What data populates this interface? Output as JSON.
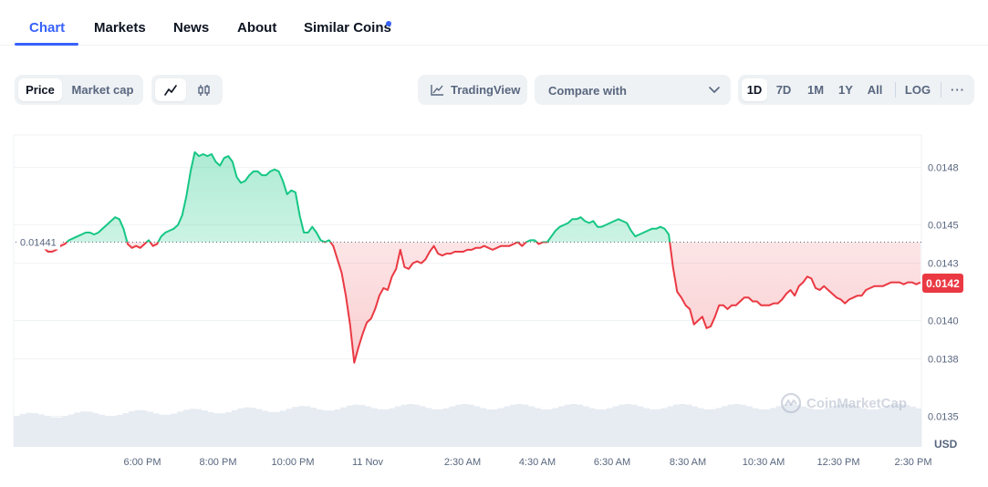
{
  "tabs": [
    {
      "label": "Chart",
      "active": true
    },
    {
      "label": "Markets",
      "active": false
    },
    {
      "label": "News",
      "active": false
    },
    {
      "label": "About",
      "active": false
    },
    {
      "label": "Similar Coins",
      "active": false,
      "has_dot": true
    }
  ],
  "toolbar": {
    "metric_options": [
      {
        "label": "Price",
        "active": true
      },
      {
        "label": "Market cap",
        "active": false
      }
    ],
    "chart_style_icons": [
      "line-chart-icon",
      "candlestick-icon"
    ],
    "tradingview_label": "TradingView",
    "compare_label": "Compare with",
    "range_options": [
      {
        "label": "1D",
        "active": true
      },
      {
        "label": "7D",
        "active": false
      },
      {
        "label": "1M",
        "active": false
      },
      {
        "label": "1Y",
        "active": false
      },
      {
        "label": "All",
        "active": false
      }
    ],
    "log_label": "LOG",
    "more_label": "···"
  },
  "colors": {
    "accent": "#3861fb",
    "up": "#16c784",
    "down": "#ea3943",
    "muted_text": "#58667e",
    "volume": "#e7ecf2"
  },
  "watermark": "CoinMarketCap",
  "chart_data": {
    "type": "area",
    "currency": "USD",
    "baseline": 0.01441,
    "baseline_label": "0.01441",
    "current_price": 0.0142,
    "current_price_label": "0.0142",
    "ylim": [
      0.01334,
      0.01497
    ],
    "y_ticks": [
      "0.0148",
      "0.0145",
      "0.0143",
      "0.0140",
      "0.0138",
      "0.0135"
    ],
    "x_ticks": [
      "6:00 PM",
      "8:00 PM",
      "10:00 PM",
      "11 Nov",
      "2:30 AM",
      "4:30 AM",
      "6:30 AM",
      "8:30 AM",
      "10:30 AM",
      "12:30 PM",
      "2:30 PM"
    ],
    "price_series": [
      0.01438,
      0.01436,
      0.01436,
      0.01437,
      0.01439,
      0.0144,
      0.01442,
      0.01443,
      0.01444,
      0.01445,
      0.01446,
      0.01446,
      0.01445,
      0.01446,
      0.01448,
      0.0145,
      0.01452,
      0.01454,
      0.01453,
      0.01448,
      0.0144,
      0.01438,
      0.01439,
      0.01438,
      0.0144,
      0.01442,
      0.01439,
      0.0144,
      0.01444,
      0.01446,
      0.01447,
      0.01448,
      0.0145,
      0.01455,
      0.01465,
      0.01478,
      0.01488,
      0.01486,
      0.01487,
      0.01486,
      0.01487,
      0.01483,
      0.01481,
      0.01485,
      0.01486,
      0.01483,
      0.01475,
      0.01472,
      0.01473,
      0.01476,
      0.01478,
      0.01478,
      0.01476,
      0.01476,
      0.01478,
      0.01479,
      0.01478,
      0.01473,
      0.01466,
      0.01468,
      0.01467,
      0.01455,
      0.01446,
      0.01446,
      0.01449,
      0.01446,
      0.01442,
      0.01441,
      0.01442,
      0.01439,
      0.01432,
      0.01425,
      0.01413,
      0.01398,
      0.01378,
      0.01386,
      0.01393,
      0.01399,
      0.01401,
      0.01406,
      0.01413,
      0.01417,
      0.01416,
      0.01423,
      0.01427,
      0.01437,
      0.01428,
      0.01427,
      0.0143,
      0.01431,
      0.0143,
      0.01432,
      0.01436,
      0.01439,
      0.01435,
      0.01434,
      0.01435,
      0.01435,
      0.01436,
      0.01436,
      0.01436,
      0.01437,
      0.01437,
      0.01438,
      0.01438,
      0.01439,
      0.01438,
      0.01437,
      0.01438,
      0.01439,
      0.01439,
      0.01439,
      0.0144,
      0.01441,
      0.01439,
      0.01441,
      0.01442,
      0.01442,
      0.0144,
      0.01441,
      0.01441,
      0.01444,
      0.01447,
      0.01449,
      0.0145,
      0.01451,
      0.01453,
      0.01453,
      0.01454,
      0.01452,
      0.01451,
      0.01452,
      0.01449,
      0.01449,
      0.0145,
      0.01451,
      0.01452,
      0.01453,
      0.01452,
      0.01451,
      0.01447,
      0.01444,
      0.01445,
      0.01446,
      0.01447,
      0.01448,
      0.01448,
      0.01449,
      0.01448,
      0.01445,
      0.01428,
      0.01415,
      0.01412,
      0.01408,
      0.01406,
      0.01398,
      0.014,
      0.01402,
      0.01396,
      0.01397,
      0.01402,
      0.01408,
      0.01408,
      0.01406,
      0.01408,
      0.01408,
      0.0141,
      0.01412,
      0.01412,
      0.0141,
      0.0141,
      0.01408,
      0.01408,
      0.01408,
      0.01409,
      0.01409,
      0.01411,
      0.01414,
      0.01416,
      0.01413,
      0.01418,
      0.0142,
      0.01423,
      0.01422,
      0.01417,
      0.01416,
      0.01418,
      0.01416,
      0.01414,
      0.01412,
      0.01411,
      0.01409,
      0.01411,
      0.01412,
      0.01413,
      0.01413,
      0.01416,
      0.01417,
      0.01418,
      0.01418,
      0.01418,
      0.01419,
      0.0142,
      0.0142,
      0.0142,
      0.01419,
      0.0142,
      0.0142,
      0.01419,
      0.0142
    ]
  }
}
